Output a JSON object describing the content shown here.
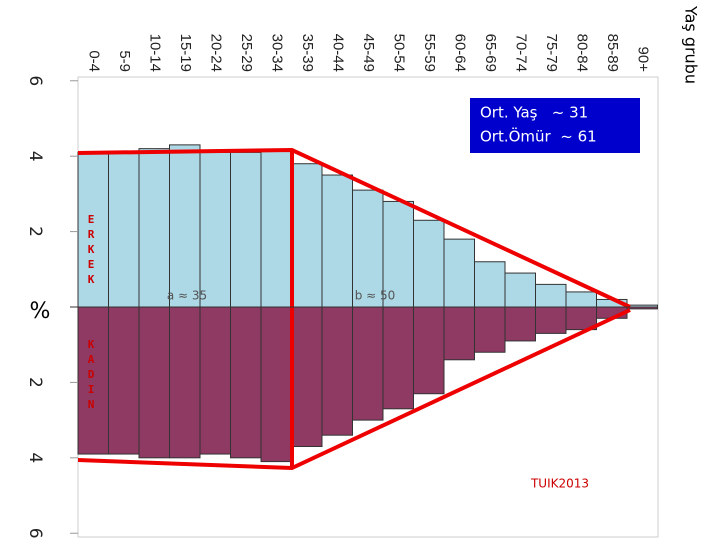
{
  "chart_data": {
    "type": "pyramid",
    "x_axis_label": "Yaş grubu",
    "y_axis_label": "%",
    "categories": [
      "0-4",
      "5-9",
      "10-14",
      "15-19",
      "20-24",
      "25-29",
      "30-34",
      "35-39",
      "40-44",
      "45-49",
      "50-54",
      "55-59",
      "60-64",
      "65-69",
      "70-74",
      "75-79",
      "80-84",
      "85-89",
      "90+"
    ],
    "series": [
      {
        "name": "ERKEK",
        "color": "#add8e6",
        "values": [
          4.1,
          4.1,
          4.2,
          4.3,
          4.1,
          4.1,
          4.15,
          3.8,
          3.5,
          3.1,
          2.8,
          2.3,
          1.8,
          1.2,
          0.9,
          0.6,
          0.4,
          0.2,
          0.05
        ]
      },
      {
        "name": "KADIN",
        "color": "#8e3a63",
        "values": [
          -3.9,
          -3.9,
          -4.0,
          -4.0,
          -3.9,
          -4.0,
          -4.1,
          -3.7,
          -3.4,
          -3.0,
          -2.7,
          -2.3,
          -1.4,
          -1.2,
          -0.9,
          -0.7,
          -0.6,
          -0.3,
          -0.05
        ]
      }
    ],
    "ylim": [
      6.1,
      -6.1
    ],
    "yticks": [
      6,
      4,
      2,
      {
        "value": -2,
        "label": "2"
      },
      {
        "value": -4,
        "label": "4"
      },
      {
        "value": -6,
        "label": "6"
      }
    ],
    "legend_lines": [
      "Ort. Yaş   ~ 31",
      "Ort.Ömür  ~ 61"
    ],
    "annotations": [
      "a ≈ 35",
      "b ≈ 50",
      "TUIK2013"
    ]
  }
}
